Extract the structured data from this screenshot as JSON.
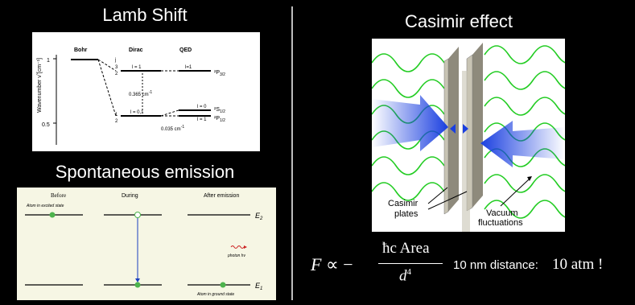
{
  "left": {
    "lamb_title": "Lamb Shift",
    "spont_title": "Spontaneous emission",
    "lamb_chart": {
      "ylabel": "Wavenumber ν̃ [cm⁻¹]",
      "yticks": [
        "1",
        "0.5"
      ],
      "col_bohr": "Bohr",
      "col_dirac": "Dirac",
      "col_qed": "QED",
      "j_label": "j",
      "j_top": "3",
      "j_top_den": "2",
      "j_bot": "1",
      "j_bot_den": "2",
      "l1_dirac": "l = 1",
      "l1_qed": "l=1",
      "p32": "²P",
      "p32_sub": "3/2",
      "gap_365": "0.365 cm",
      "gap_365_exp": "-1",
      "l01": "l = 0,1",
      "l0_qed": "l = 0",
      "s12": "²S",
      "s12_sub": "1/2",
      "l1_qed_low": "l = 1",
      "p12": "²P",
      "p12_sub": "1/2",
      "gap_035": "0.035 cm",
      "gap_035_exp": "-1"
    },
    "spont": {
      "col_before": "Before",
      "col_during": "During",
      "col_after": "After emission",
      "excited": "Atom in excited state",
      "ground": "Atom in ground state",
      "photon": "photon hν",
      "e2": "E",
      "e2_sub": "2",
      "e1": "E",
      "e1_sub": "1"
    }
  },
  "right": {
    "casimir_title": "Casimir effect",
    "plates_label_1": "Casimir",
    "plates_label_2": "plates",
    "vacuum_label_1": "Vacuum",
    "vacuum_label_2": "fluctuations",
    "formula_F": "F",
    "formula_prop": "∝ −",
    "formula_num": "ħc Area",
    "formula_den": "d",
    "formula_den_exp": "4",
    "distance_text": "10 nm distance:",
    "pressure_text": "10 atm !"
  },
  "colors": {
    "background": "#000000",
    "wave_green": "#22cc22",
    "arrow_blue": "#1a3fe0",
    "plate_gray": "#c8c4b4",
    "spont_bg": "#f6f6e4",
    "atom_green": "#4db34d",
    "photon_red": "#cc2222"
  }
}
